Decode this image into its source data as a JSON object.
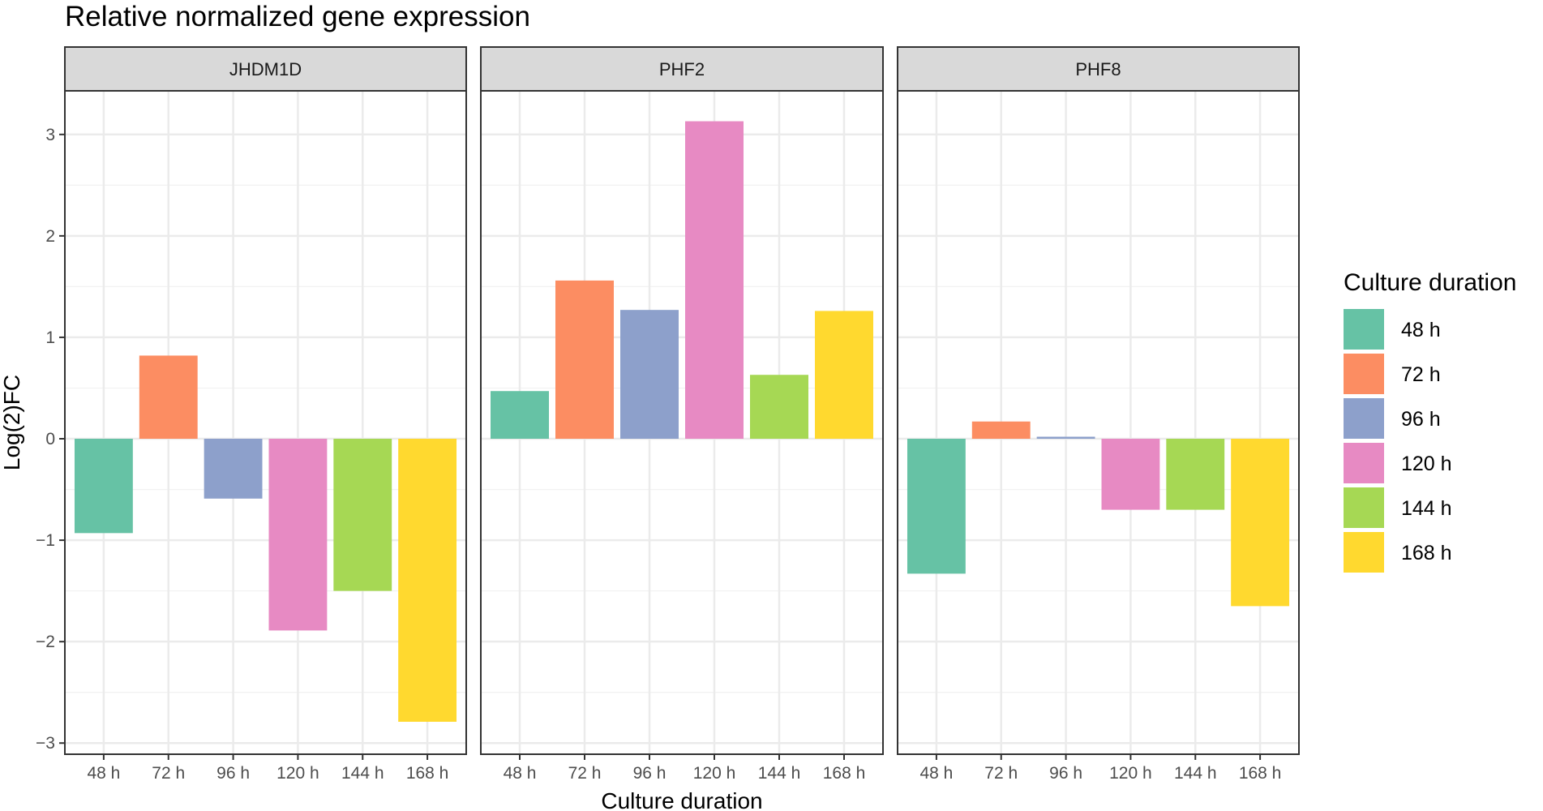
{
  "chart_data": {
    "type": "bar",
    "title": "Relative normalized gene expression",
    "xlabel": "Culture duration",
    "ylabel": "Log(2)FC",
    "ylim": [
      -3.11,
      3.43
    ],
    "yticks": [
      -3,
      -2,
      -1,
      0,
      1,
      2,
      3
    ],
    "ytick_labels": [
      "−3",
      "−2",
      "−1",
      "0",
      "1",
      "2",
      "3"
    ],
    "grid": true,
    "legend_position": "right",
    "categories": [
      "48 h",
      "72 h",
      "96 h",
      "120 h",
      "144 h",
      "168 h"
    ],
    "colors": [
      "#66c2a5",
      "#fc8d62",
      "#8da0cb",
      "#e78ac3",
      "#a6d854",
      "#ffd92f"
    ],
    "legend": {
      "title": "Culture duration",
      "entries": [
        "48 h",
        "72 h",
        "96 h",
        "120 h",
        "144 h",
        "168 h"
      ]
    },
    "facets": [
      {
        "name": "JHDM1D",
        "values": [
          -0.93,
          0.82,
          -0.59,
          -1.89,
          -1.5,
          -2.79
        ]
      },
      {
        "name": "PHF2",
        "values": [
          0.47,
          1.56,
          1.27,
          3.13,
          0.63,
          1.26
        ]
      },
      {
        "name": "PHF8",
        "values": [
          -1.33,
          0.17,
          0.02,
          -0.7,
          -0.7,
          -1.65
        ]
      }
    ]
  }
}
